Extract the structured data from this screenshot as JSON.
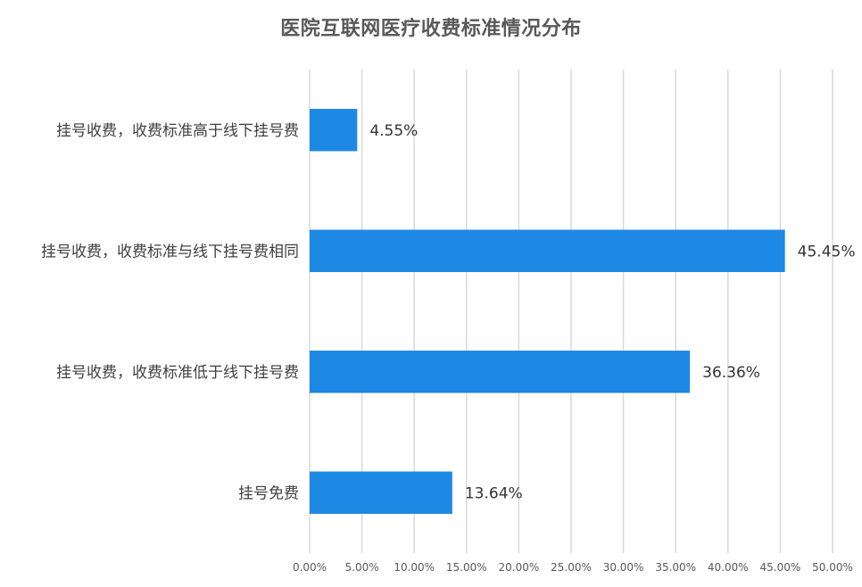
{
  "chart_data": {
    "type": "bar",
    "orientation": "horizontal",
    "title": "医院互联网医疗收费标准情况分布",
    "categories": [
      "挂号收费，收费标准高于线下挂号费",
      "挂号收费，收费标准与线下挂号费相同",
      "挂号收费，收费标准低于线下挂号费",
      "挂号免费"
    ],
    "values": [
      4.55,
      45.45,
      36.36,
      13.64
    ],
    "data_labels": [
      "4.55%",
      "45.45%",
      "36.36%",
      "13.64%"
    ],
    "xlim": [
      0,
      50
    ],
    "x_ticks": [
      "0.00%",
      "5.00%",
      "10.00%",
      "15.00%",
      "20.00%",
      "25.00%",
      "30.00%",
      "35.00%",
      "40.00%",
      "45.00%",
      "50.00%"
    ],
    "xlabel": "",
    "ylabel": "",
    "grid": "vertical",
    "legend": "none",
    "bar_color": "#1E88E5",
    "grid_color": "#D9D9D9"
  }
}
